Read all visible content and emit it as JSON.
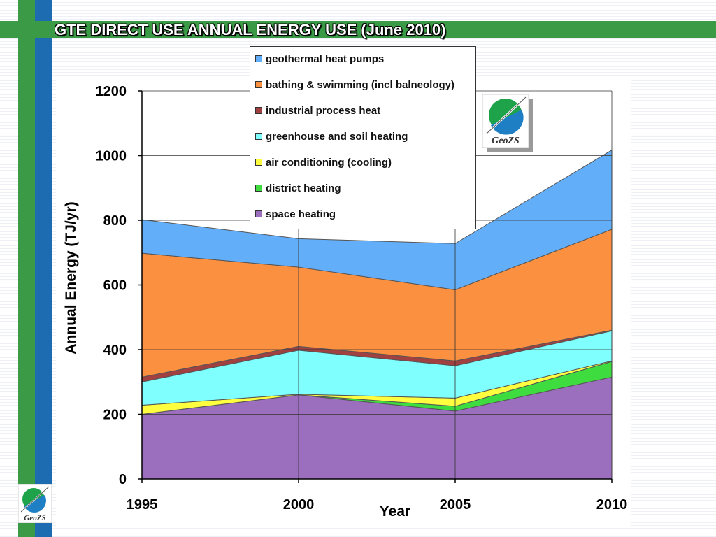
{
  "title": "GTE DIRECT USE ANNUAL ENERGY USE (June 2010)",
  "logo_text": "GeoZS",
  "chart_data": {
    "type": "area",
    "stacked": true,
    "title": "",
    "xlabel": "Year",
    "ylabel": "Annual Energy (TJ/yr)",
    "x": [
      1995,
      2000,
      2005,
      2010
    ],
    "ylim": [
      0,
      1200
    ],
    "yticks": [
      0,
      200,
      400,
      600,
      800,
      1000,
      1200
    ],
    "grid": true,
    "legend_position": "top-center",
    "series": [
      {
        "name": "space heating",
        "color": "#9b6fbd",
        "values": [
          200,
          260,
          210,
          315
        ]
      },
      {
        "name": "district heating",
        "color": "#3fdc3f",
        "values": [
          0,
          0,
          15,
          48
        ]
      },
      {
        "name": "air conditioning (cooling)",
        "color": "#ffff40",
        "values": [
          28,
          2,
          25,
          2
        ]
      },
      {
        "name": "greenhouse and soil heating",
        "color": "#80ffff",
        "values": [
          72,
          136,
          100,
          93
        ]
      },
      {
        "name": "industrial process heat",
        "color": "#a04040",
        "values": [
          15,
          12,
          15,
          2
        ]
      },
      {
        "name": "bathing & swimming (incl balneology)",
        "color": "#fb9040",
        "values": [
          383,
          245,
          220,
          312
        ]
      },
      {
        "name": "geothermal heat pumps",
        "color": "#62aef8",
        "values": [
          104,
          88,
          143,
          245
        ]
      }
    ]
  }
}
